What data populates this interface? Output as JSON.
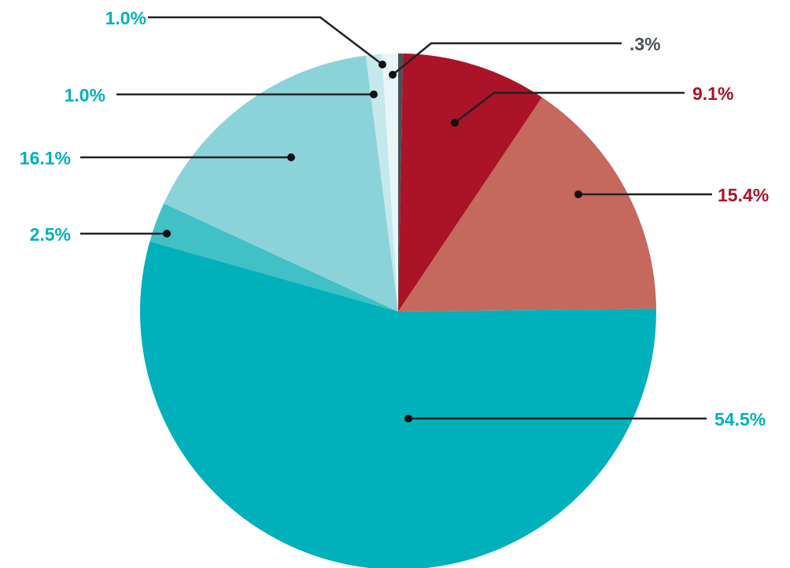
{
  "chart_data": {
    "type": "pie",
    "title": "",
    "start": "top",
    "direction": "clockwise",
    "slices": [
      {
        "label": ".3%",
        "value": 0.3,
        "color": "#4a5057",
        "label_color": "#4a5057"
      },
      {
        "label": "9.1%",
        "value": 9.1,
        "color": "#ab1328",
        "label_color": "#ab1328"
      },
      {
        "label": "15.4%",
        "value": 15.4,
        "color": "#c5685d",
        "label_color": "#ab1328"
      },
      {
        "label": "54.5%",
        "value": 54.5,
        "color": "#00b1bb",
        "label_color": "#00b1bb"
      },
      {
        "label": "2.5%",
        "value": 2.5,
        "color": "#41c0c6",
        "label_color": "#00b1bb"
      },
      {
        "label": "16.1%",
        "value": 16.1,
        "color": "#8cd3d9",
        "label_color": "#00b1bb"
      },
      {
        "label": "1.0%",
        "value": 1.0,
        "color": "#c5e8ec",
        "label_color": "#00b1bb"
      },
      {
        "label": "1.0%",
        "value": 1.0,
        "color": "#e9f6f8",
        "label_color": "#00b1bb"
      }
    ]
  }
}
